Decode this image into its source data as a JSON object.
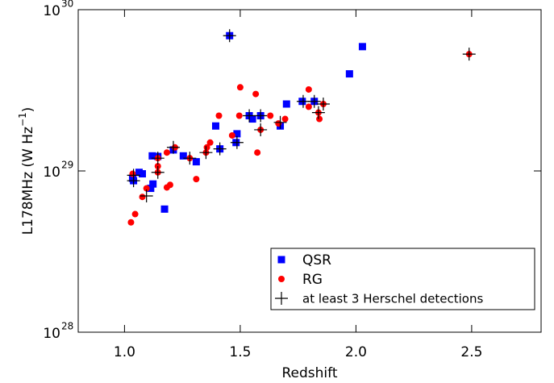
{
  "chart_data": {
    "type": "scatter",
    "xlabel": "Redshift",
    "ylabel": {
      "text": "L178MHz (W Hz",
      "sup": "−1",
      "tail": ")"
    },
    "xlim": [
      0.8,
      2.8
    ],
    "ylim": [
      1e+28,
      1e+30
    ],
    "log_y": true,
    "xticks": [
      {
        "value": 1,
        "label": "1.0"
      },
      1.5,
      {
        "value": 2,
        "label": "2.0"
      },
      2.5
    ],
    "yticks": [
      {
        "value": 1e+28,
        "label": "10",
        "exponent": "28"
      },
      {
        "value": 1e+29,
        "label": "10",
        "exponent": "29"
      },
      {
        "value": 1e+30,
        "label": "10",
        "exponent": "30"
      }
    ],
    "legend": "lower right",
    "series": [
      {
        "name": "QSR",
        "color": "#0000ff",
        "marker": "square",
        "x": [
          1.454,
          2.028,
          1.972,
          1.7,
          1.768,
          1.82,
          1.539,
          1.553,
          1.588,
          1.486,
          1.482,
          1.673,
          1.394,
          1.412,
          1.12,
          1.144,
          1.211,
          1.254,
          1.31,
          1.063,
          1.077,
          1.035,
          1.039,
          1.123,
          1.113,
          1.173
        ],
        "values": [
          6.9e+29,
          5.9e+29,
          4e+29,
          2.6e+29,
          2.7e+29,
          2.7e+29,
          2.2e+29,
          2.1e+29,
          2.2e+29,
          1.7e+29,
          1.5e+29,
          1.9e+29,
          1.9e+29,
          1.37e+29,
          1.24e+29,
          1.23e+29,
          1.35e+29,
          1.24e+29,
          1.14e+29,
          9.8e+28,
          9.6e+28,
          9e+28,
          8.7e+28,
          8.3e+28,
          7.8e+28,
          5.8e+28
        ]
      },
      {
        "name": "RG",
        "color": "#ff0000",
        "marker": "circle",
        "x": [
          2.489,
          1.5,
          1.567,
          1.796,
          1.796,
          1.408,
          1.496,
          1.63,
          1.859,
          1.838,
          1.842,
          1.694,
          1.465,
          1.665,
          1.588,
          1.574,
          1.37,
          1.356,
          1.352,
          1.183,
          1.218,
          1.282,
          1.144,
          1.144,
          1.144,
          1.31,
          1.197,
          1.183,
          1.095,
          1.077,
          1.046,
          1.028,
          1.035
        ],
        "values": [
          5.3e+29,
          3.3e+29,
          3e+29,
          3.2e+29,
          2.5e+29,
          2.2e+29,
          2.2e+29,
          2.2e+29,
          2.6e+29,
          2.3e+29,
          2.1e+29,
          2.1e+29,
          1.66e+29,
          1.97e+29,
          1.8e+29,
          1.3e+29,
          1.5e+29,
          1.4e+29,
          1.3e+29,
          1.3e+29,
          1.4e+29,
          1.2e+29,
          1.2e+29,
          1.07e+29,
          9.8e+28,
          8.9e+28,
          8.2e+28,
          7.9e+28,
          7.8e+28,
          6.9e+28,
          5.4e+28,
          4.8e+28,
          9.6e+28
        ]
      },
      {
        "name": "at least 3 Herschel detections",
        "color": "#000000",
        "marker": "cross",
        "x": [
          1.454,
          2.489,
          1.772,
          1.82,
          1.859,
          1.838,
          1.539,
          1.588,
          1.673,
          1.588,
          1.486,
          1.412,
          1.352,
          1.211,
          1.282,
          1.144,
          1.144,
          1.039,
          1.039,
          1.095
        ],
        "values": [
          6.9e+29,
          5.3e+29,
          2.7e+29,
          2.7e+29,
          2.6e+29,
          2.3e+29,
          2.2e+29,
          2.2e+29,
          2e+29,
          1.8e+29,
          1.5e+29,
          1.37e+29,
          1.3e+29,
          1.4e+29,
          1.2e+29,
          1.2e+29,
          9.8e+28,
          9.4e+28,
          8.7e+28,
          7e+28
        ]
      }
    ]
  }
}
